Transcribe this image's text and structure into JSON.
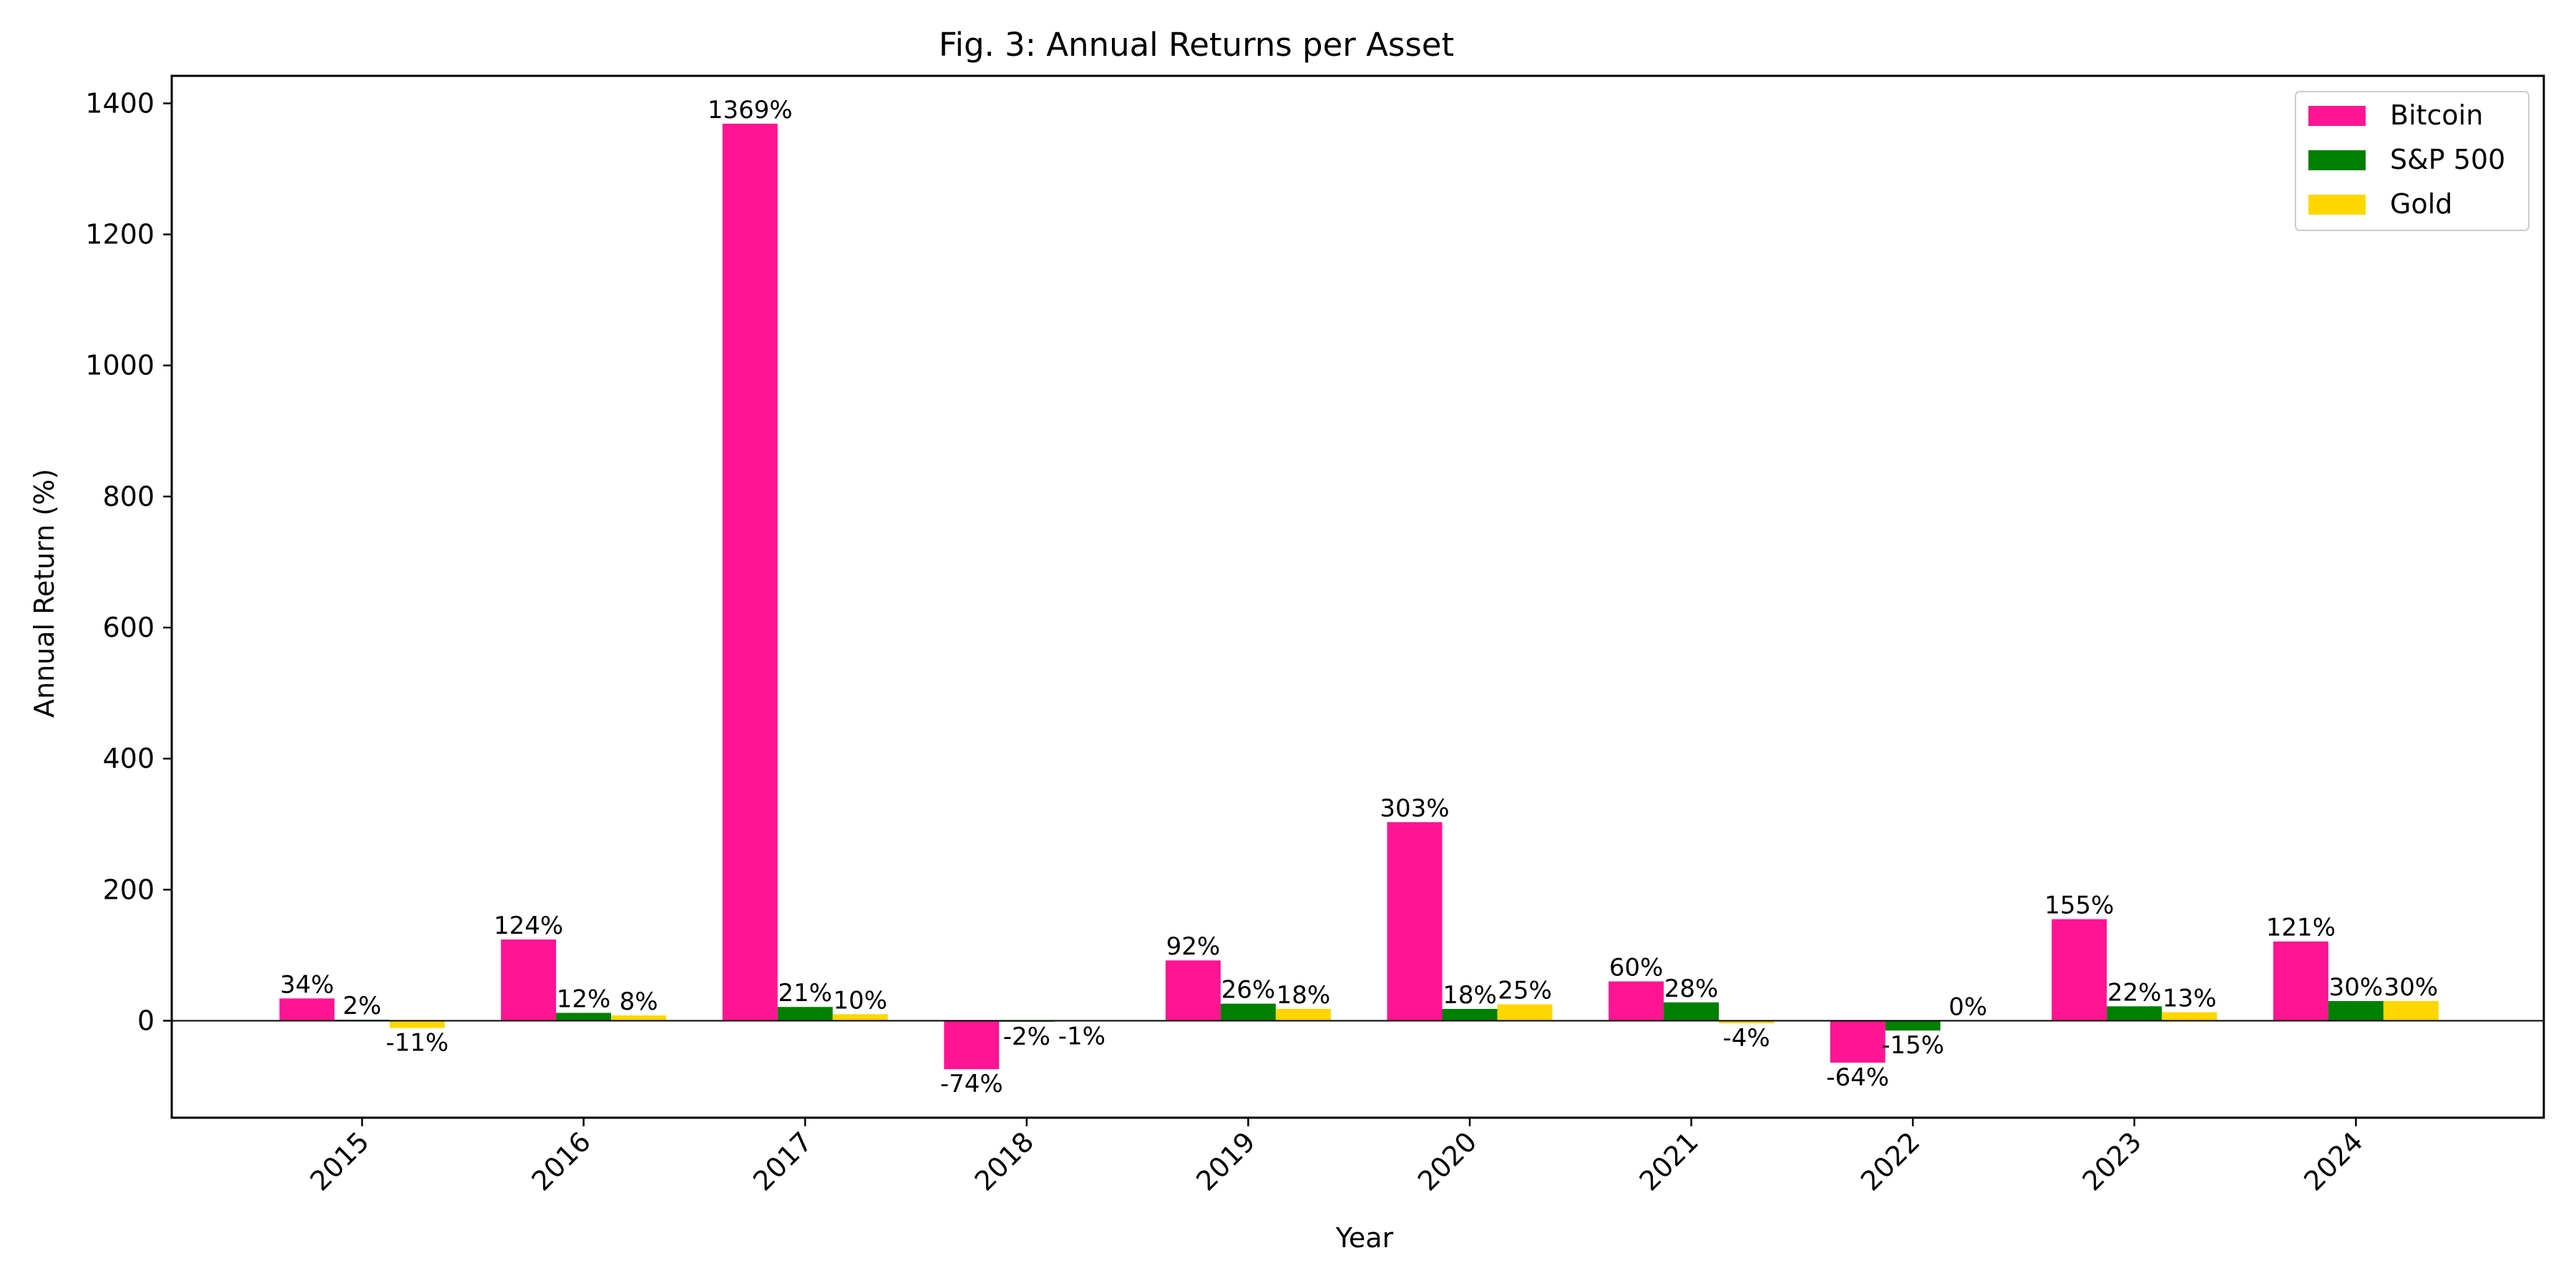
{
  "chart_data": {
    "type": "bar",
    "title": "Fig. 3: Annual Returns per Asset",
    "xlabel": "Year",
    "ylabel": "Annual Return (%)",
    "categories": [
      "2015",
      "2016",
      "2017",
      "2018",
      "2019",
      "2020",
      "2021",
      "2022",
      "2023",
      "2024"
    ],
    "series": [
      {
        "name": "Bitcoin",
        "color": "#ff1493",
        "values": [
          34,
          124,
          1369,
          -74,
          92,
          303,
          60,
          -64,
          155,
          121
        ],
        "labels": [
          "34%",
          "124%",
          "1369%",
          "-74%",
          "92%",
          "303%",
          "60%",
          "-64%",
          "155%",
          "121%"
        ]
      },
      {
        "name": "S&P 500",
        "color": "#008000",
        "values": [
          1.5,
          12,
          21,
          -1.5,
          26,
          18,
          28,
          -15,
          22,
          30
        ],
        "labels": [
          "2%",
          "12%",
          "21%",
          "-2%",
          "26%",
          "18%",
          "28%",
          "-15%",
          "22%",
          "30%"
        ]
      },
      {
        "name": "Gold",
        "color": "#ffd700",
        "values": [
          -11,
          8,
          10,
          -1,
          18,
          25,
          -4,
          0,
          13,
          30
        ],
        "labels": [
          "-11%",
          "8%",
          "10%",
          "-1%",
          "18%",
          "25%",
          "-4%",
          "0%",
          "13%",
          "30%"
        ]
      }
    ],
    "yticks": [
      0,
      200,
      400,
      600,
      800,
      1000,
      1200,
      1400
    ],
    "ylim": [
      -148,
      1442
    ],
    "grid": false,
    "legend": "top-right",
    "zero_line": true
  }
}
